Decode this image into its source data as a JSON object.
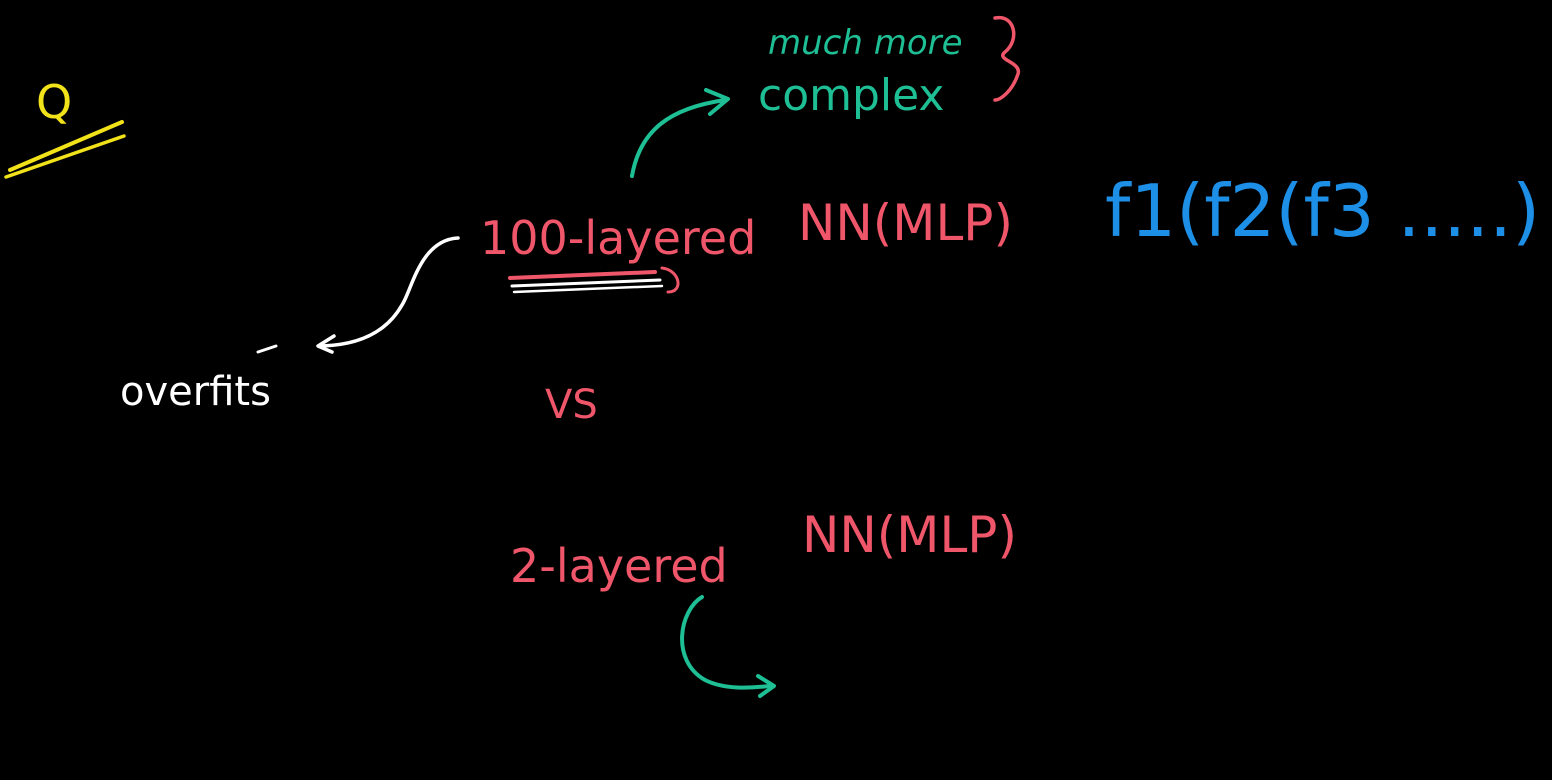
{
  "board": {
    "background": "#000000",
    "colors": {
      "yellow": "#f2e21a",
      "teal": "#1fbf95",
      "pink": "#f0566a",
      "white": "#ffffff",
      "blue": "#1d8fe6"
    },
    "question_mark": {
      "text": "Q",
      "icon": "question-icon"
    },
    "notes": {
      "teal_top_line1": "much more",
      "teal_top_line2": "complex",
      "blue_formula": "f1(f2(f3 .....)",
      "pink_100_layered": "100-layered",
      "pink_nn_mlp_1": "NN(MLP)",
      "white_overfits": "overfits",
      "pink_vs": "VS",
      "pink_2_layered": "2-layered",
      "pink_nn_mlp_2": "NN(MLP)"
    }
  }
}
